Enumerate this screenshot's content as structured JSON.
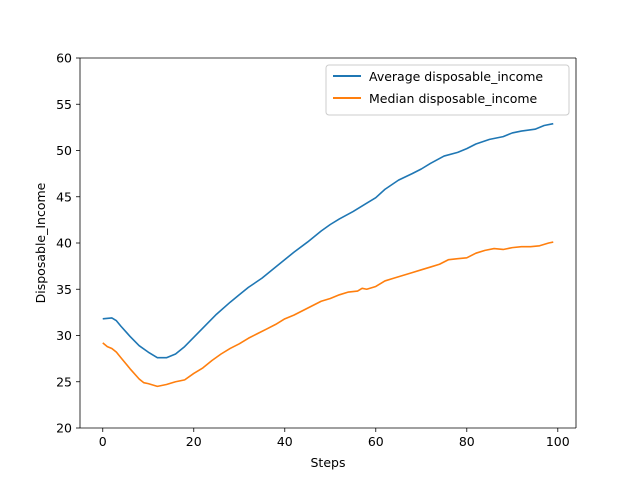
{
  "chart_data": {
    "type": "line",
    "title": "",
    "xlabel": "Steps",
    "ylabel": "Disposable_Income",
    "xlim": [
      -5,
      104
    ],
    "ylim": [
      20,
      60
    ],
    "xticks": [
      0,
      20,
      40,
      60,
      80,
      100
    ],
    "yticks": [
      20,
      25,
      30,
      35,
      40,
      45,
      50,
      55,
      60
    ],
    "grid": false,
    "legend_position": "top-right",
    "series": [
      {
        "name": "Average disposable_income",
        "color": "#1f77b4",
        "x": [
          0,
          2,
          3,
          4,
          6,
          8,
          10,
          12,
          14,
          16,
          18,
          20,
          22,
          25,
          28,
          30,
          32,
          35,
          38,
          40,
          42,
          45,
          48,
          50,
          52,
          55,
          58,
          60,
          62,
          65,
          68,
          70,
          72,
          75,
          78,
          80,
          82,
          85,
          88,
          90,
          92,
          95,
          97,
          99
        ],
        "y": [
          31.8,
          31.9,
          31.6,
          31.0,
          29.9,
          28.9,
          28.2,
          27.6,
          27.6,
          28.0,
          28.8,
          29.8,
          30.8,
          32.3,
          33.6,
          34.4,
          35.2,
          36.2,
          37.4,
          38.2,
          39.0,
          40.1,
          41.3,
          42.0,
          42.6,
          43.4,
          44.3,
          44.9,
          45.8,
          46.8,
          47.5,
          48.0,
          48.6,
          49.4,
          49.8,
          50.2,
          50.7,
          51.2,
          51.5,
          51.9,
          52.1,
          52.3,
          52.7,
          52.9
        ]
      },
      {
        "name": "Median disposable_income",
        "color": "#ff7f0e",
        "x": [
          0,
          1,
          2,
          3,
          4,
          6,
          8,
          9,
          10,
          12,
          14,
          16,
          18,
          20,
          22,
          24,
          26,
          28,
          30,
          32,
          34,
          36,
          38,
          40,
          42,
          44,
          46,
          48,
          50,
          52,
          54,
          56,
          57,
          58,
          60,
          62,
          64,
          66,
          68,
          70,
          72,
          74,
          76,
          78,
          80,
          82,
          84,
          86,
          88,
          90,
          92,
          94,
          96,
          98,
          99
        ],
        "y": [
          29.2,
          28.8,
          28.6,
          28.2,
          27.6,
          26.4,
          25.3,
          24.9,
          24.8,
          24.5,
          24.7,
          25.0,
          25.2,
          25.9,
          26.5,
          27.3,
          28.0,
          28.6,
          29.1,
          29.7,
          30.2,
          30.7,
          31.2,
          31.8,
          32.2,
          32.7,
          33.2,
          33.7,
          34.0,
          34.4,
          34.7,
          34.8,
          35.1,
          35.0,
          35.3,
          35.9,
          36.2,
          36.5,
          36.8,
          37.1,
          37.4,
          37.7,
          38.2,
          38.3,
          38.4,
          38.9,
          39.2,
          39.4,
          39.3,
          39.5,
          39.6,
          39.6,
          39.7,
          40.0,
          40.1
        ]
      }
    ]
  }
}
